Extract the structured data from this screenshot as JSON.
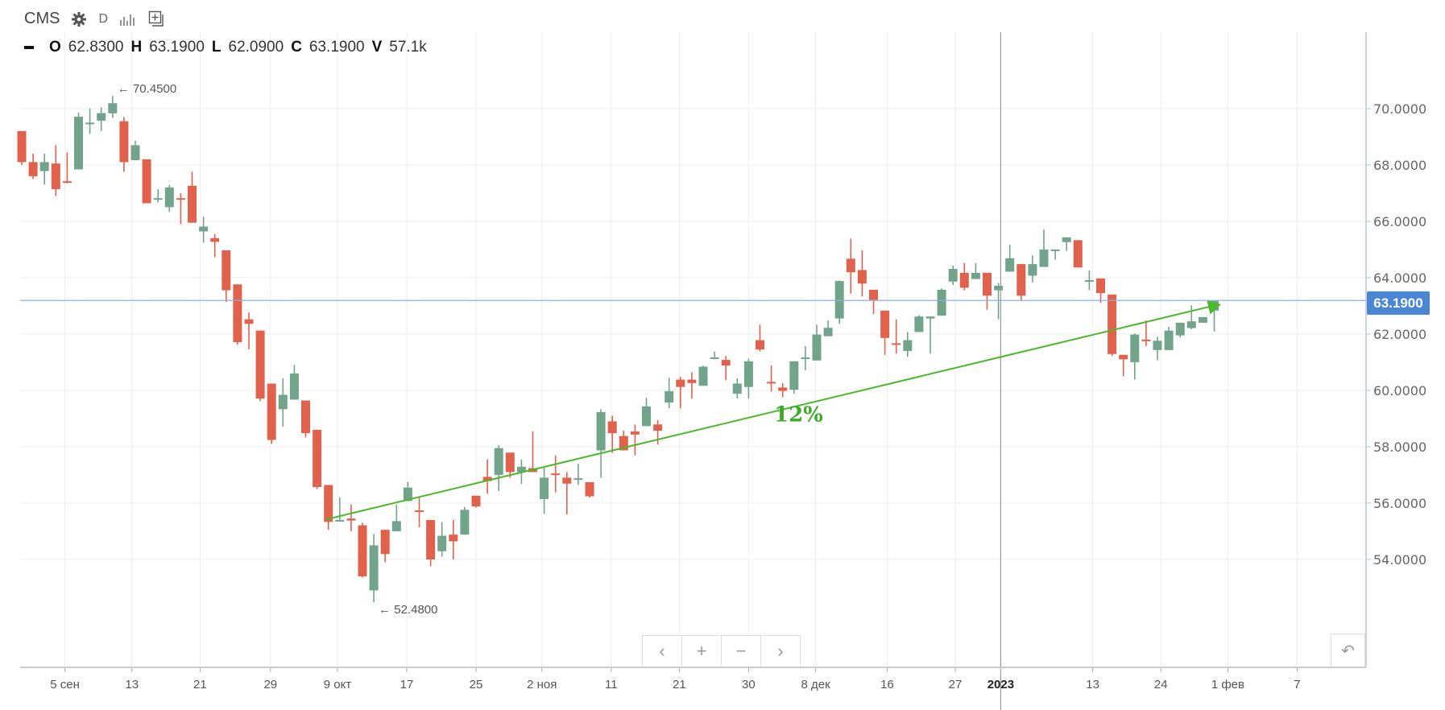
{
  "header": {
    "symbol": "CMS",
    "interval": "D",
    "settings_icon": "gear-icon",
    "bars_icon": "bar-chart-icon",
    "add_icon": "add-compare-icon"
  },
  "ohlc": {
    "o_label": "O",
    "o_value": "62.8300",
    "h_label": "H",
    "h_value": "63.1900",
    "l_label": "L",
    "l_value": "62.0900",
    "c_label": "C",
    "c_value": "63.1900",
    "v_label": "V",
    "v_value": "57.1k"
  },
  "nav": {
    "prev": "‹",
    "zoom_in": "+",
    "zoom_out": "−",
    "next": "›",
    "reset": "↶"
  },
  "colors": {
    "up": "#72a48c",
    "down": "#e0624d",
    "trend": "#4cb82c",
    "last_price": "#4a86d4",
    "grid": "#eeeeee"
  },
  "chart_data": {
    "type": "candlestick",
    "ylim": [
      50.17,
      72.71
    ],
    "xlim": [
      -0.15,
      118.5
    ],
    "y_ticks": [
      "54.0000",
      "56.0000",
      "58.0000",
      "60.0000",
      "62.0000",
      "64.0000",
      "66.0000",
      "68.0000",
      "70.0000"
    ],
    "x_ticks": [
      {
        "label": "5 сен",
        "at": 3.8
      },
      {
        "label": "13",
        "at": 9.7
      },
      {
        "label": "21",
        "at": 15.7
      },
      {
        "label": "29",
        "at": 21.9
      },
      {
        "label": "9 окт",
        "at": 27.8
      },
      {
        "label": "17",
        "at": 33.9
      },
      {
        "label": "25",
        "at": 40.0
      },
      {
        "label": "2 ноя",
        "at": 45.8
      },
      {
        "label": "11",
        "at": 51.9
      },
      {
        "label": "21",
        "at": 57.9
      },
      {
        "label": "30",
        "at": 64.0
      },
      {
        "label": "8 дек",
        "at": 69.9
      },
      {
        "label": "16",
        "at": 76.2
      },
      {
        "label": "27",
        "at": 82.2
      },
      {
        "label": "2023",
        "at": 86.2,
        "bold": true
      },
      {
        "label": "13",
        "at": 94.3
      },
      {
        "label": "24",
        "at": 100.3
      },
      {
        "label": "1 фев",
        "at": 106.2
      },
      {
        "label": "7",
        "at": 112.3
      }
    ],
    "crosshair_x": 86.2,
    "last_price": 63.19,
    "last_price_label": "63.1900",
    "high_marker": {
      "index": 8,
      "price": 70.45,
      "label": "← 70.4500"
    },
    "low_marker": {
      "index": 31,
      "price": 52.48,
      "label": "← 52.4800"
    },
    "trendline": {
      "from": [
        26.8,
        55.42
      ],
      "to": [
        105.6,
        63.05
      ],
      "label": "12%",
      "label_at": [
        68.4,
        58.9
      ]
    },
    "ohlc_columns": [
      "open",
      "high",
      "low",
      "close"
    ],
    "candles": [
      [
        69.2,
        69.2,
        68.0,
        68.1
      ],
      [
        68.1,
        68.4,
        67.5,
        67.6
      ],
      [
        67.78,
        68.4,
        67.3,
        68.1
      ],
      [
        68.05,
        68.7,
        66.9,
        67.14
      ],
      [
        67.42,
        68.45,
        67.35,
        67.4
      ],
      [
        67.84,
        69.86,
        67.84,
        69.71
      ],
      [
        69.48,
        70.0,
        69.1,
        69.5
      ],
      [
        69.57,
        70.05,
        69.2,
        69.84
      ],
      [
        69.83,
        70.45,
        69.67,
        70.19
      ],
      [
        69.55,
        69.7,
        67.76,
        68.1
      ],
      [
        68.17,
        68.86,
        68.17,
        68.7
      ],
      [
        68.2,
        68.2,
        66.64,
        66.64
      ],
      [
        66.8,
        67.14,
        66.67,
        66.82
      ],
      [
        66.5,
        67.29,
        66.33,
        67.2
      ],
      [
        66.82,
        67.0,
        65.9,
        66.8
      ],
      [
        67.26,
        67.76,
        65.95,
        65.95
      ],
      [
        65.64,
        66.16,
        65.24,
        65.81
      ],
      [
        65.4,
        65.55,
        64.73,
        65.27
      ],
      [
        64.97,
        64.97,
        63.14,
        63.55
      ],
      [
        63.76,
        63.76,
        61.62,
        61.71
      ],
      [
        62.52,
        62.76,
        61.46,
        62.36
      ],
      [
        62.12,
        62.12,
        59.62,
        59.71
      ],
      [
        60.24,
        60.24,
        58.1,
        58.24
      ],
      [
        59.33,
        60.43,
        58.71,
        59.84
      ],
      [
        59.67,
        60.9,
        59.67,
        60.6
      ],
      [
        59.64,
        59.64,
        58.33,
        58.48
      ],
      [
        58.6,
        58.6,
        56.5,
        56.57
      ],
      [
        56.64,
        56.64,
        55.05,
        55.33
      ],
      [
        55.38,
        56.2,
        55.38,
        55.4
      ],
      [
        55.45,
        55.95,
        55.0,
        55.38
      ],
      [
        55.21,
        55.3,
        53.35,
        53.4
      ],
      [
        52.9,
        54.9,
        52.48,
        54.5
      ],
      [
        55.05,
        55.05,
        53.9,
        54.19
      ],
      [
        55.0,
        55.95,
        55.0,
        55.36
      ],
      [
        56.07,
        56.75,
        56.07,
        56.55
      ],
      [
        55.74,
        56.2,
        55.14,
        55.71
      ],
      [
        55.4,
        55.4,
        53.76,
        54.0
      ],
      [
        54.29,
        55.33,
        54.1,
        54.84
      ],
      [
        54.88,
        55.4,
        54.0,
        54.64
      ],
      [
        54.88,
        55.86,
        54.88,
        55.76
      ],
      [
        56.26,
        56.26,
        55.84,
        55.88
      ],
      [
        56.93,
        57.55,
        56.33,
        56.78
      ],
      [
        57.0,
        58.05,
        56.43,
        57.95
      ],
      [
        57.79,
        57.79,
        56.9,
        57.1
      ],
      [
        57.1,
        57.55,
        56.67,
        57.29
      ],
      [
        57.24,
        58.55,
        57.1,
        57.1
      ],
      [
        56.14,
        57.29,
        55.62,
        56.9
      ],
      [
        57.05,
        57.69,
        56.38,
        57.0
      ],
      [
        56.9,
        57.1,
        55.6,
        56.69
      ],
      [
        56.85,
        57.4,
        56.64,
        56.88
      ],
      [
        56.74,
        56.74,
        56.19,
        56.24
      ],
      [
        57.87,
        59.33,
        56.9,
        59.23
      ],
      [
        58.9,
        59.1,
        57.78,
        58.48
      ],
      [
        58.38,
        58.57,
        57.87,
        57.87
      ],
      [
        58.54,
        58.79,
        57.69,
        58.43
      ],
      [
        58.73,
        59.74,
        58.73,
        59.43
      ],
      [
        58.79,
        58.95,
        58.07,
        58.57
      ],
      [
        59.57,
        60.45,
        59.36,
        59.97
      ],
      [
        60.38,
        60.48,
        59.36,
        60.12
      ],
      [
        60.38,
        60.64,
        59.71,
        60.26
      ],
      [
        60.16,
        60.88,
        60.16,
        60.84
      ],
      [
        61.14,
        61.38,
        61.12,
        61.17
      ],
      [
        61.08,
        61.22,
        60.36,
        60.88
      ],
      [
        59.88,
        60.43,
        59.71,
        60.24
      ],
      [
        60.12,
        61.12,
        59.71,
        61.03
      ],
      [
        61.78,
        62.33,
        61.38,
        61.45
      ],
      [
        60.3,
        60.88,
        59.95,
        60.27
      ],
      [
        60.1,
        60.26,
        59.76,
        59.98
      ],
      [
        60.02,
        61.03,
        59.88,
        61.03
      ],
      [
        61.14,
        61.57,
        60.71,
        61.17
      ],
      [
        61.06,
        62.33,
        61.06,
        61.98
      ],
      [
        61.92,
        62.48,
        61.92,
        62.22
      ],
      [
        62.55,
        63.9,
        62.36,
        63.88
      ],
      [
        64.67,
        65.38,
        63.43,
        64.19
      ],
      [
        64.27,
        64.97,
        63.33,
        63.79
      ],
      [
        63.57,
        63.57,
        62.71,
        63.21
      ],
      [
        62.83,
        62.83,
        61.26,
        61.86
      ],
      [
        61.67,
        62.52,
        61.3,
        61.64
      ],
      [
        61.4,
        62.07,
        61.19,
        61.78
      ],
      [
        62.07,
        62.67,
        62.07,
        62.62
      ],
      [
        62.55,
        62.62,
        61.3,
        62.62
      ],
      [
        62.65,
        63.62,
        62.65,
        63.57
      ],
      [
        63.86,
        64.43,
        63.74,
        64.31
      ],
      [
        64.17,
        64.52,
        63.55,
        63.64
      ],
      [
        63.95,
        64.52,
        63.95,
        64.17
      ],
      [
        64.17,
        64.17,
        62.86,
        63.36
      ],
      [
        63.55,
        63.81,
        62.52,
        63.71
      ],
      [
        64.21,
        65.17,
        64.21,
        64.69
      ],
      [
        64.48,
        64.48,
        63.17,
        63.36
      ],
      [
        64.07,
        64.79,
        63.83,
        64.48
      ],
      [
        64.38,
        65.71,
        64.38,
        65.0
      ],
      [
        64.97,
        65.0,
        64.64,
        65.0
      ],
      [
        65.26,
        65.43,
        64.95,
        65.43
      ],
      [
        65.33,
        65.33,
        64.36,
        64.36
      ],
      [
        63.88,
        64.26,
        63.55,
        63.91
      ],
      [
        63.97,
        63.97,
        63.1,
        63.45
      ],
      [
        63.4,
        63.4,
        61.21,
        61.29
      ],
      [
        61.26,
        61.26,
        60.5,
        61.1
      ],
      [
        61.0,
        62.02,
        60.38,
        61.98
      ],
      [
        61.8,
        62.48,
        61.57,
        61.77
      ],
      [
        61.43,
        61.9,
        61.07,
        61.76
      ],
      [
        61.43,
        62.26,
        61.43,
        62.12
      ],
      [
        61.95,
        62.4,
        61.88,
        62.4
      ],
      [
        62.21,
        63.02,
        62.17,
        62.45
      ],
      [
        62.4,
        62.6,
        62.4,
        62.6
      ],
      [
        62.83,
        63.19,
        62.09,
        63.19
      ]
    ]
  }
}
